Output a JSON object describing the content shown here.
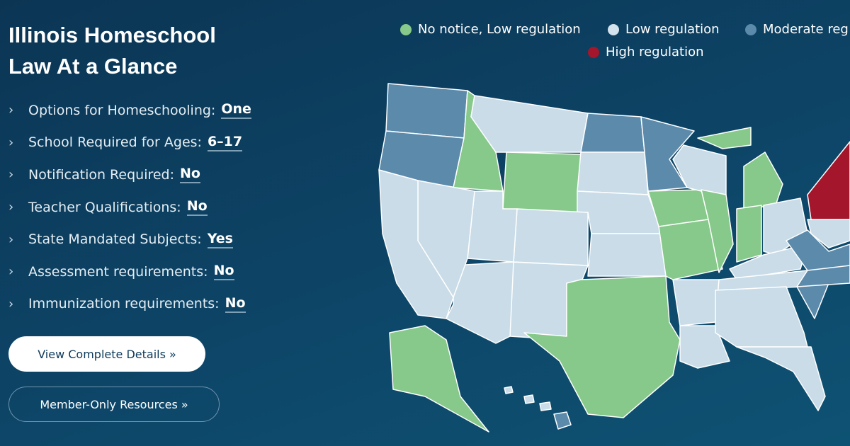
{
  "header": {
    "title_line1": "Illinois Homeschool",
    "title_line2": "Law At a Glance"
  },
  "facts": [
    {
      "label": "Options for Homeschooling:",
      "value": "One"
    },
    {
      "label": "School Required for Ages:",
      "value": "6–17"
    },
    {
      "label": "Notification Required:",
      "value": "No"
    },
    {
      "label": "Teacher Qualifications:",
      "value": "No"
    },
    {
      "label": "State Mandated Subjects:",
      "value": "Yes"
    },
    {
      "label": "Assessment requirements:",
      "value": "No"
    },
    {
      "label": "Immunization requirements:",
      "value": "No"
    }
  ],
  "buttons": {
    "details": "View Complete Details »",
    "members": "Member-Only Resources »"
  },
  "legend": [
    "No notice, Low regulation",
    "Low regulation",
    "Moderate reg",
    "High regulation"
  ]
}
